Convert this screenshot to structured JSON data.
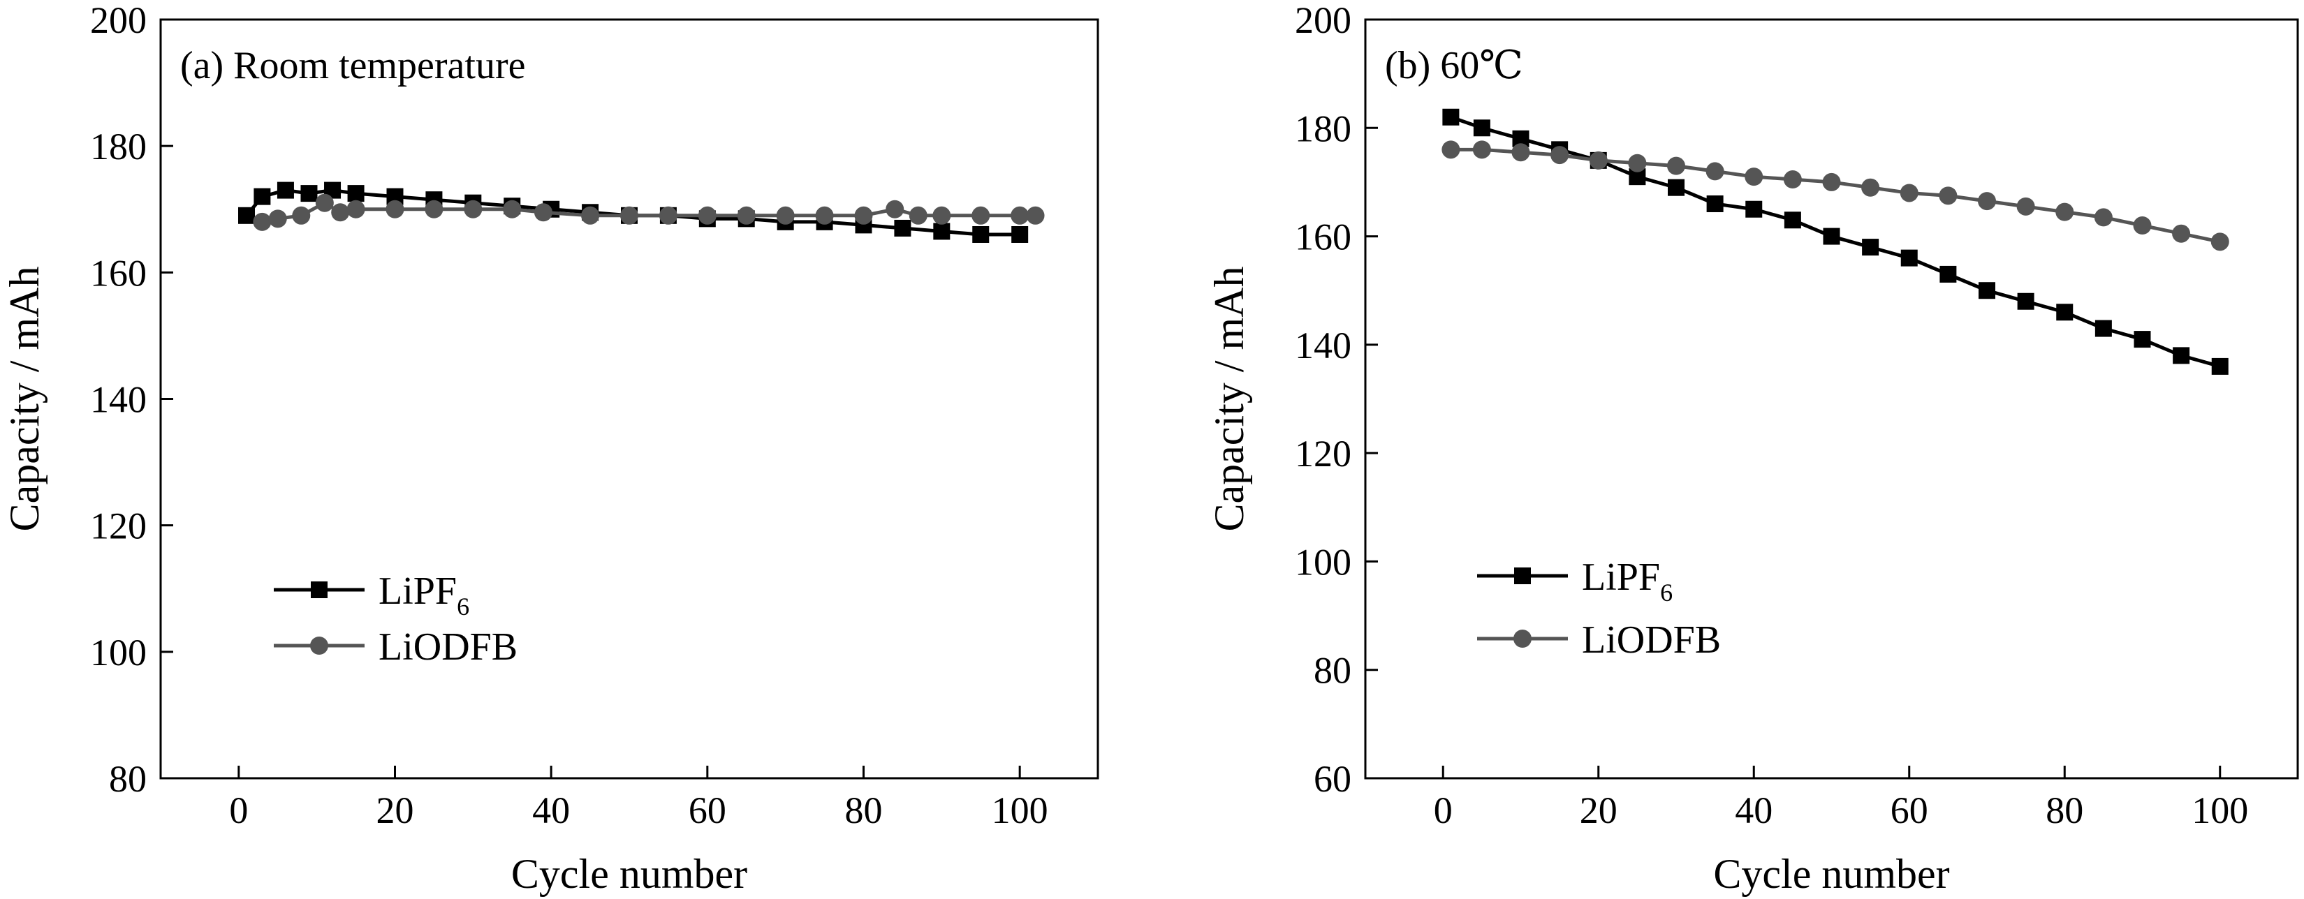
{
  "chart_data": [
    {
      "type": "line",
      "title": "(a) Room temperature",
      "xlabel": "Cycle number",
      "ylabel": "Capacity / mAh",
      "xlim": [
        -10,
        110
      ],
      "ylim": [
        80,
        200
      ],
      "xticks": [
        "0",
        "20",
        "40",
        "60",
        "80",
        "100"
      ],
      "yticks": [
        "80",
        "100",
        "120",
        "140",
        "160",
        "180",
        "200"
      ],
      "grid": false,
      "legend_position": "lower-left",
      "series": [
        {
          "name": "LiPF6",
          "name_base": "LiPF",
          "name_sub": "6",
          "marker": "square",
          "color": "#000000",
          "x": [
            1,
            3,
            6,
            9,
            12,
            15,
            20,
            25,
            30,
            35,
            40,
            45,
            50,
            55,
            60,
            65,
            70,
            75,
            80,
            85,
            90,
            95,
            100
          ],
          "y": [
            169,
            172,
            173,
            172.5,
            173,
            172.5,
            172,
            171.5,
            171,
            170.5,
            170,
            169.5,
            169,
            169,
            168.5,
            168.5,
            168,
            168,
            167.5,
            167,
            166.5,
            166,
            166
          ]
        },
        {
          "name": "LiODFB",
          "marker": "circle",
          "color": "#555555",
          "x": [
            3,
            5,
            8,
            11,
            13,
            15,
            20,
            25,
            30,
            35,
            39,
            45,
            50,
            55,
            60,
            65,
            70,
            75,
            80,
            84,
            87,
            90,
            95,
            100,
            102
          ],
          "y": [
            168,
            168.5,
            169,
            171,
            169.5,
            170,
            170,
            170,
            170,
            170,
            169.5,
            169,
            169,
            169,
            169,
            169,
            169,
            169,
            169,
            170,
            169,
            169,
            169,
            169,
            169
          ]
        }
      ]
    },
    {
      "type": "line",
      "title": "(b) 60℃",
      "xlabel": "Cycle number",
      "ylabel": "Capacity / mAh",
      "xlim": [
        -10,
        110
      ],
      "ylim": [
        60,
        200
      ],
      "xticks": [
        "0",
        "20",
        "40",
        "60",
        "80",
        "100"
      ],
      "yticks": [
        "60",
        "80",
        "100",
        "120",
        "140",
        "160",
        "180",
        "200"
      ],
      "grid": false,
      "legend_position": "lower-left",
      "series": [
        {
          "name": "LiPF6",
          "name_base": "LiPF",
          "name_sub": "6",
          "marker": "square",
          "color": "#000000",
          "x": [
            1,
            5,
            10,
            15,
            20,
            25,
            30,
            35,
            40,
            45,
            50,
            55,
            60,
            65,
            70,
            75,
            80,
            85,
            90,
            95,
            100
          ],
          "y": [
            182,
            180,
            178,
            176,
            174,
            171,
            169,
            166,
            165,
            163,
            160,
            158,
            156,
            153,
            150,
            148,
            146,
            143,
            141,
            138,
            136
          ]
        },
        {
          "name": "LiODFB",
          "marker": "circle",
          "color": "#555555",
          "x": [
            1,
            5,
            10,
            15,
            20,
            25,
            30,
            35,
            40,
            45,
            50,
            55,
            60,
            65,
            70,
            75,
            80,
            85,
            90,
            95,
            100
          ],
          "y": [
            176,
            176,
            175.5,
            175,
            174,
            173.5,
            173,
            172,
            171,
            170.5,
            170,
            169,
            168,
            167.5,
            166.5,
            165.5,
            164.5,
            163.5,
            162,
            160.5,
            159
          ]
        }
      ]
    }
  ]
}
